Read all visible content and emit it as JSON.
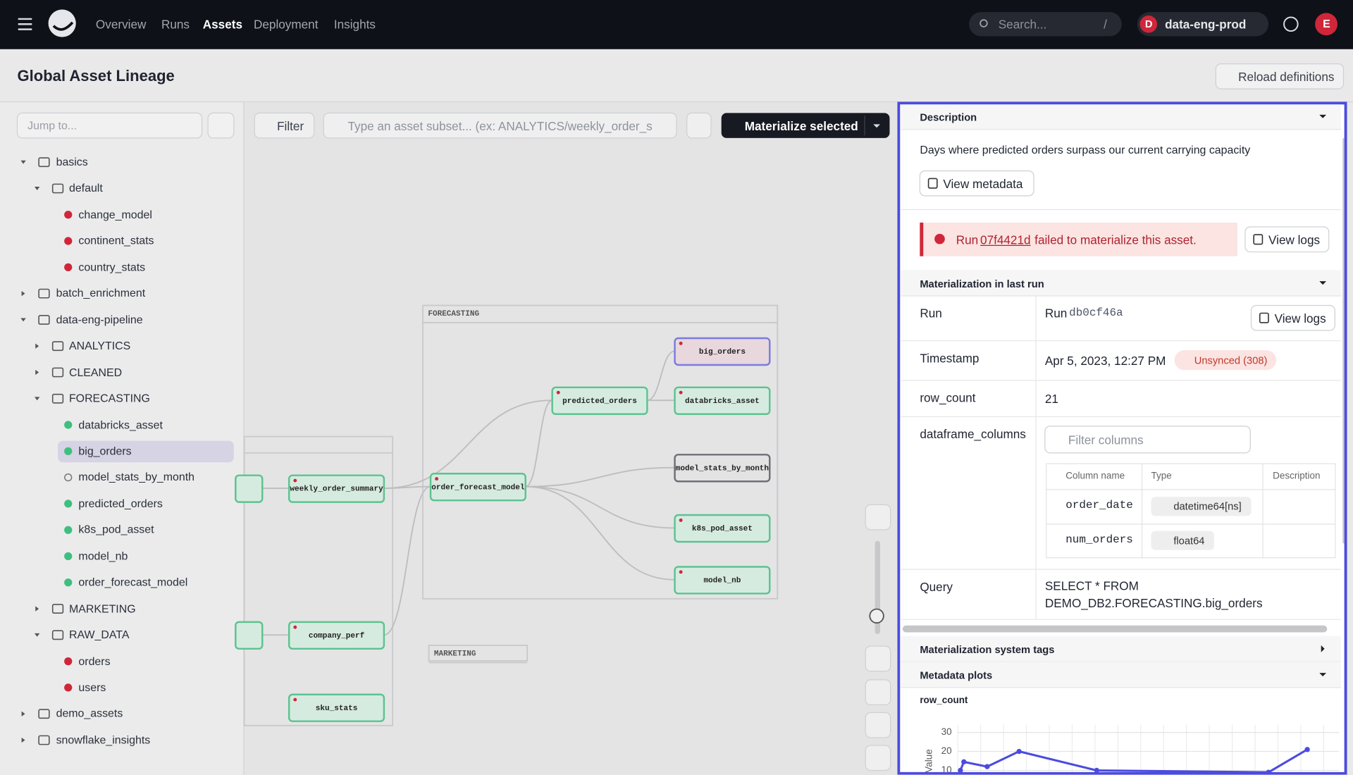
{
  "nav": {
    "items": [
      "Overview",
      "Runs",
      "Assets",
      "Deployment",
      "Insights"
    ],
    "search_placeholder": "Search...",
    "search_shortcut": "/",
    "deployment_initial": "D",
    "deployment": "data-eng-prod",
    "user_initial": "E"
  },
  "header": {
    "title": "Global Asset Lineage",
    "reload": "Reload definitions"
  },
  "sidebar": {
    "search_placeholder": "Jump to...",
    "tree": [
      {
        "label": "basics",
        "kind": "folder",
        "open": true
      },
      {
        "label": "default",
        "kind": "group",
        "open": true
      },
      {
        "label": "change_model",
        "kind": "asset",
        "status": "failed"
      },
      {
        "label": "continent_stats",
        "kind": "asset",
        "status": "failed"
      },
      {
        "label": "country_stats",
        "kind": "asset",
        "status": "failed"
      },
      {
        "label": "batch_enrichment",
        "kind": "folder",
        "open": false
      },
      {
        "label": "data-eng-pipeline",
        "kind": "folder",
        "open": true
      },
      {
        "label": "ANALYTICS",
        "kind": "group",
        "open": false
      },
      {
        "label": "CLEANED",
        "kind": "group",
        "open": false
      },
      {
        "label": "FORECASTING",
        "kind": "group",
        "open": true
      },
      {
        "label": "databricks_asset",
        "kind": "asset",
        "status": "success"
      },
      {
        "label": "big_orders",
        "kind": "asset",
        "status": "success",
        "selected": true
      },
      {
        "label": "model_stats_by_month",
        "kind": "asset",
        "status": "missing"
      },
      {
        "label": "predicted_orders",
        "kind": "asset",
        "status": "success"
      },
      {
        "label": "k8s_pod_asset",
        "kind": "asset",
        "status": "success"
      },
      {
        "label": "model_nb",
        "kind": "asset",
        "status": "success"
      },
      {
        "label": "order_forecast_model",
        "kind": "asset",
        "status": "success"
      },
      {
        "label": "MARKETING",
        "kind": "group",
        "open": false
      },
      {
        "label": "RAW_DATA",
        "kind": "group",
        "open": true
      },
      {
        "label": "orders",
        "kind": "asset",
        "status": "failed"
      },
      {
        "label": "users",
        "kind": "asset",
        "status": "failed"
      },
      {
        "label": "demo_assets",
        "kind": "folder",
        "open": false
      },
      {
        "label": "snowflake_insights",
        "kind": "folder",
        "open": false
      }
    ]
  },
  "toolbar": {
    "filter": "Filter",
    "query_placeholder": "Type an asset subset... (ex: ANALYTICS/weekly_order_s",
    "materialize": "Materialize selected"
  },
  "lineage": {
    "groups": [
      "FORECASTING",
      "MARKETING"
    ],
    "nodes": [
      {
        "label": "big_orders",
        "state": "selected"
      },
      {
        "label": "databricks_asset",
        "state": "success"
      },
      {
        "label": "predicted_orders",
        "state": "success"
      },
      {
        "label": "model_stats_by_month",
        "state": "missing"
      },
      {
        "label": "k8s_pod_asset",
        "state": "success"
      },
      {
        "label": "model_nb",
        "state": "success"
      },
      {
        "label": "order_forecast_model",
        "state": "success"
      },
      {
        "label": "weekly_order_summary",
        "state": "success"
      },
      {
        "label": "company_perf",
        "state": "success"
      },
      {
        "label": "sku_stats",
        "state": "success"
      }
    ]
  },
  "details": {
    "description_title": "Description",
    "description": "Days where predicted orders surpass our current carrying capacity",
    "view_metadata": "View metadata",
    "error": {
      "prefix": "Run",
      "run_id": "07f4421d",
      "message": "failed to materialize this asset.",
      "button": "View logs"
    },
    "materialization_title": "Materialization in last run",
    "run": {
      "label": "Run",
      "prefix": "Run",
      "id": "db0cf46a",
      "button": "View logs"
    },
    "timestamp": {
      "label": "Timestamp",
      "value": "Apr 5, 2023, 12:27 PM",
      "badge": "Unsynced (308)"
    },
    "row_count": {
      "label": "row_count",
      "value": "21"
    },
    "dataframe_columns": {
      "label": "dataframe_columns",
      "filter_placeholder": "Filter columns",
      "headers": [
        "Column name",
        "Type",
        "Description"
      ],
      "rows": [
        [
          "order_date",
          "datetime64[ns]"
        ],
        [
          "num_orders",
          "float64"
        ]
      ]
    },
    "query": {
      "label": "Query",
      "lines": [
        "SELECT * FROM",
        "DEMO_DB2.FORECASTING.big_orders"
      ]
    },
    "system_tags_title": "Materialization system tags",
    "plots_title": "Metadata plots",
    "plot": {
      "type": "line",
      "title": "row_count",
      "ylabel": "Value",
      "ylim": [
        0,
        30
      ],
      "yticks": [
        10,
        20,
        30
      ],
      "values": [
        10,
        14.5,
        12,
        20,
        10,
        9,
        21
      ]
    }
  }
}
